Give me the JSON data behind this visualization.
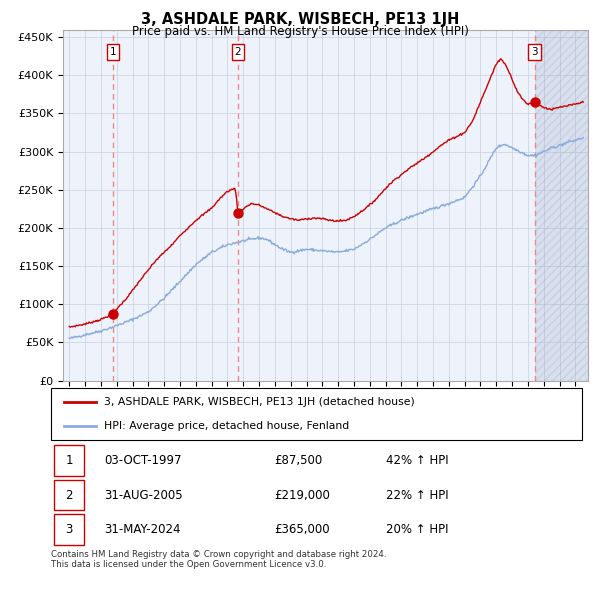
{
  "title": "3, ASHDALE PARK, WISBECH, PE13 1JH",
  "subtitle": "Price paid vs. HM Land Registry's House Price Index (HPI)",
  "ylim": [
    0,
    460000
  ],
  "yticks": [
    0,
    50000,
    100000,
    150000,
    200000,
    250000,
    300000,
    350000,
    400000,
    450000
  ],
  "ytick_labels": [
    "£0",
    "£50K",
    "£100K",
    "£150K",
    "£200K",
    "£250K",
    "£300K",
    "£350K",
    "£400K",
    "£450K"
  ],
  "xlim_start": 1994.6,
  "xlim_end": 2027.8,
  "xticks": [
    1995,
    1996,
    1997,
    1998,
    1999,
    2000,
    2001,
    2002,
    2003,
    2004,
    2005,
    2006,
    2007,
    2008,
    2009,
    2010,
    2011,
    2012,
    2013,
    2014,
    2015,
    2016,
    2017,
    2018,
    2019,
    2020,
    2021,
    2022,
    2023,
    2024,
    2025,
    2026,
    2027
  ],
  "sales": [
    {
      "date_num": 1997.75,
      "price": 87500,
      "label": "1"
    },
    {
      "date_num": 2005.67,
      "price": 219000,
      "label": "2"
    },
    {
      "date_num": 2024.42,
      "price": 365000,
      "label": "3"
    }
  ],
  "sale_color": "#cc0000",
  "hpi_color": "#88aadd",
  "vline_color": "#ee8888",
  "grid_color": "#c8d0e0",
  "bg_color": "#eef2fa",
  "hatch_color": "#99aac8",
  "legend_entries": [
    "3, ASHDALE PARK, WISBECH, PE13 1JH (detached house)",
    "HPI: Average price, detached house, Fenland"
  ],
  "table_rows": [
    {
      "num": "1",
      "date": "03-OCT-1997",
      "price": "£87,500",
      "hpi": "42% ↑ HPI"
    },
    {
      "num": "2",
      "date": "31-AUG-2005",
      "price": "£219,000",
      "hpi": "22% ↑ HPI"
    },
    {
      "num": "3",
      "date": "31-MAY-2024",
      "price": "£365,000",
      "hpi": "20% ↑ HPI"
    }
  ],
  "footer": "Contains HM Land Registry data © Crown copyright and database right 2024.\nThis data is licensed under the Open Government Licence v3.0."
}
